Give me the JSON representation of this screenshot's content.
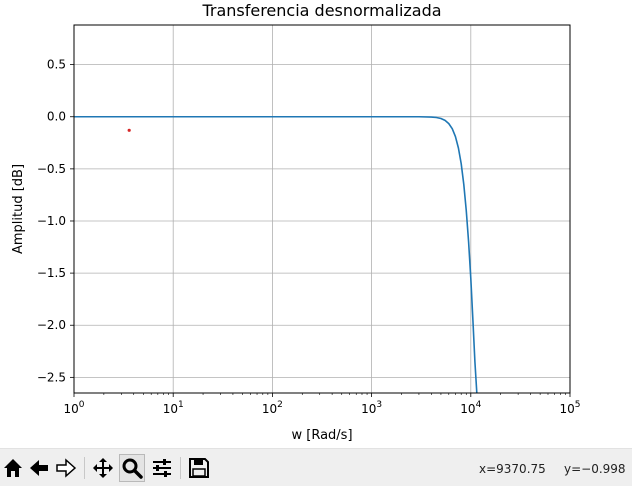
{
  "chart_data": {
    "type": "line",
    "title": "Transferencia desnormalizada",
    "xlabel": "w [Rad/s]",
    "ylabel": "Amplitud [dB]",
    "xscale": "log",
    "xlim": [
      1,
      100000
    ],
    "ylim": [
      -2.65,
      0.88
    ],
    "grid": true,
    "x_ticks": [
      {
        "value": 1,
        "base": "10",
        "exp": "0"
      },
      {
        "value": 10,
        "base": "10",
        "exp": "1"
      },
      {
        "value": 100,
        "base": "10",
        "exp": "2"
      },
      {
        "value": 1000,
        "base": "10",
        "exp": "3"
      },
      {
        "value": 10000,
        "base": "10",
        "exp": "4"
      },
      {
        "value": 100000,
        "base": "10",
        "exp": "5"
      }
    ],
    "y_ticks": [
      {
        "value": 0.5,
        "label": "0.5"
      },
      {
        "value": 0.0,
        "label": "0.0"
      },
      {
        "value": -0.5,
        "label": "−0.5"
      },
      {
        "value": -1.0,
        "label": "−1.0"
      },
      {
        "value": -1.5,
        "label": "−1.5"
      },
      {
        "value": -2.0,
        "label": "−2.0"
      },
      {
        "value": -2.5,
        "label": "−2.5"
      }
    ],
    "series": [
      {
        "color": "#1f77b4",
        "x": [
          1,
          10,
          100,
          1000,
          2000,
          3000,
          4000,
          4500,
          5000,
          5500,
          6000,
          6500,
          7000,
          7500,
          8000,
          8500,
          9000,
          9500,
          10000,
          10500,
          11000,
          11500
        ],
        "y": [
          0,
          0,
          0,
          0,
          0,
          0,
          -0.003,
          -0.007,
          -0.017,
          -0.035,
          -0.066,
          -0.115,
          -0.19,
          -0.3,
          -0.45,
          -0.65,
          -0.9,
          -1.2,
          -1.55,
          -1.95,
          -2.35,
          -2.65
        ]
      }
    ],
    "markers": [
      {
        "x": 3.6,
        "y": -0.13,
        "color": "#d62728"
      }
    ]
  },
  "toolbar": {
    "buttons": [
      {
        "name": "home-button",
        "icon": "home-icon"
      },
      {
        "name": "back-button",
        "icon": "arrow-left-icon"
      },
      {
        "name": "forward-button",
        "icon": "arrow-right-icon"
      },
      {
        "name": "pan-button",
        "icon": "move-icon"
      },
      {
        "name": "zoom-button",
        "icon": "magnifier-icon",
        "active": true
      },
      {
        "name": "configure-subplots-button",
        "icon": "sliders-icon"
      },
      {
        "name": "save-button",
        "icon": "floppy-disk-icon"
      }
    ],
    "coord_x": "x=9370.75",
    "coord_y": "y=−0.998"
  }
}
